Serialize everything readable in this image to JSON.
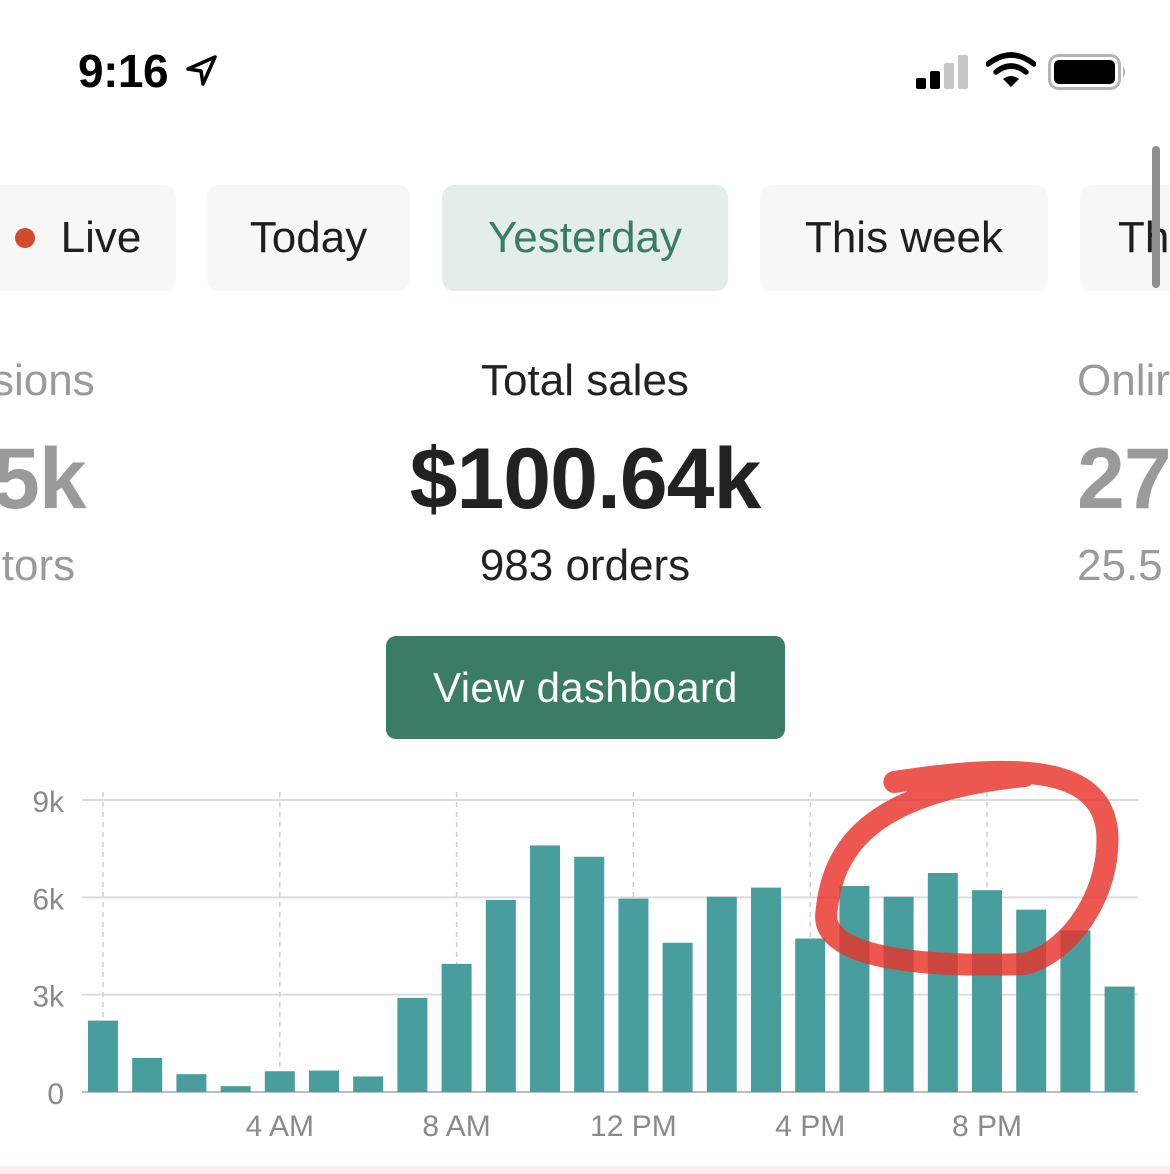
{
  "status_bar": {
    "time": "9:16"
  },
  "tabs": [
    {
      "label": "Live",
      "live_dot": true
    },
    {
      "label": "Today"
    },
    {
      "label": "Yesterday",
      "active": true
    },
    {
      "label": "This week"
    },
    {
      "label": "Th"
    }
  ],
  "metrics": {
    "left": {
      "label": "sions",
      "value": "5k",
      "sub": "itors"
    },
    "center": {
      "label": "Total sales",
      "value": "$100.64k",
      "sub": "983 orders"
    },
    "right": {
      "label": "Onlir",
      "value": "27",
      "sub": "25.5"
    }
  },
  "dashboard_button": {
    "label": "View dashboard"
  },
  "colors": {
    "accent": "#3a7d62",
    "active_tab_bg": "#e3eeea",
    "bar": "#489e9c",
    "live_dot": "#d44a2c",
    "annotation": "#e8322a"
  },
  "chart_data": {
    "type": "bar",
    "categories": [
      "12 AM",
      "1 AM",
      "2 AM",
      "3 AM",
      "4 AM",
      "5 AM",
      "6 AM",
      "7 AM",
      "8 AM",
      "9 AM",
      "10 AM",
      "11 AM",
      "12 PM",
      "1 PM",
      "2 PM",
      "3 PM",
      "4 PM",
      "5 PM",
      "6 PM",
      "7 PM",
      "8 PM",
      "9 PM",
      "10 PM",
      "11 PM"
    ],
    "values": [
      2200,
      1050,
      550,
      180,
      640,
      660,
      480,
      2900,
      3950,
      5920,
      7600,
      7250,
      5960,
      4600,
      6020,
      6300,
      4730,
      6350,
      6020,
      6750,
      6220,
      5620,
      4980,
      3250
    ],
    "ylim": [
      0,
      9000
    ],
    "y_ticks": [
      {
        "value": 0,
        "label": "0"
      },
      {
        "value": 3000,
        "label": "3k"
      },
      {
        "value": 6000,
        "label": "6k"
      },
      {
        "value": 9000,
        "label": "9k"
      }
    ],
    "x_ticks": [
      {
        "index": 4,
        "label": "4 AM"
      },
      {
        "index": 8,
        "label": "8 AM"
      },
      {
        "index": 12,
        "label": "12 PM"
      },
      {
        "index": 16,
        "label": "4 PM"
      },
      {
        "index": 20,
        "label": "8 PM"
      }
    ],
    "vertical_gridlines_at": [
      0,
      4,
      8,
      12,
      16,
      20
    ],
    "grid": true,
    "annotation": {
      "type": "freehand-circle",
      "around_categories": [
        "5 PM",
        "6 PM",
        "7 PM",
        "8 PM",
        "9 PM"
      ]
    }
  }
}
